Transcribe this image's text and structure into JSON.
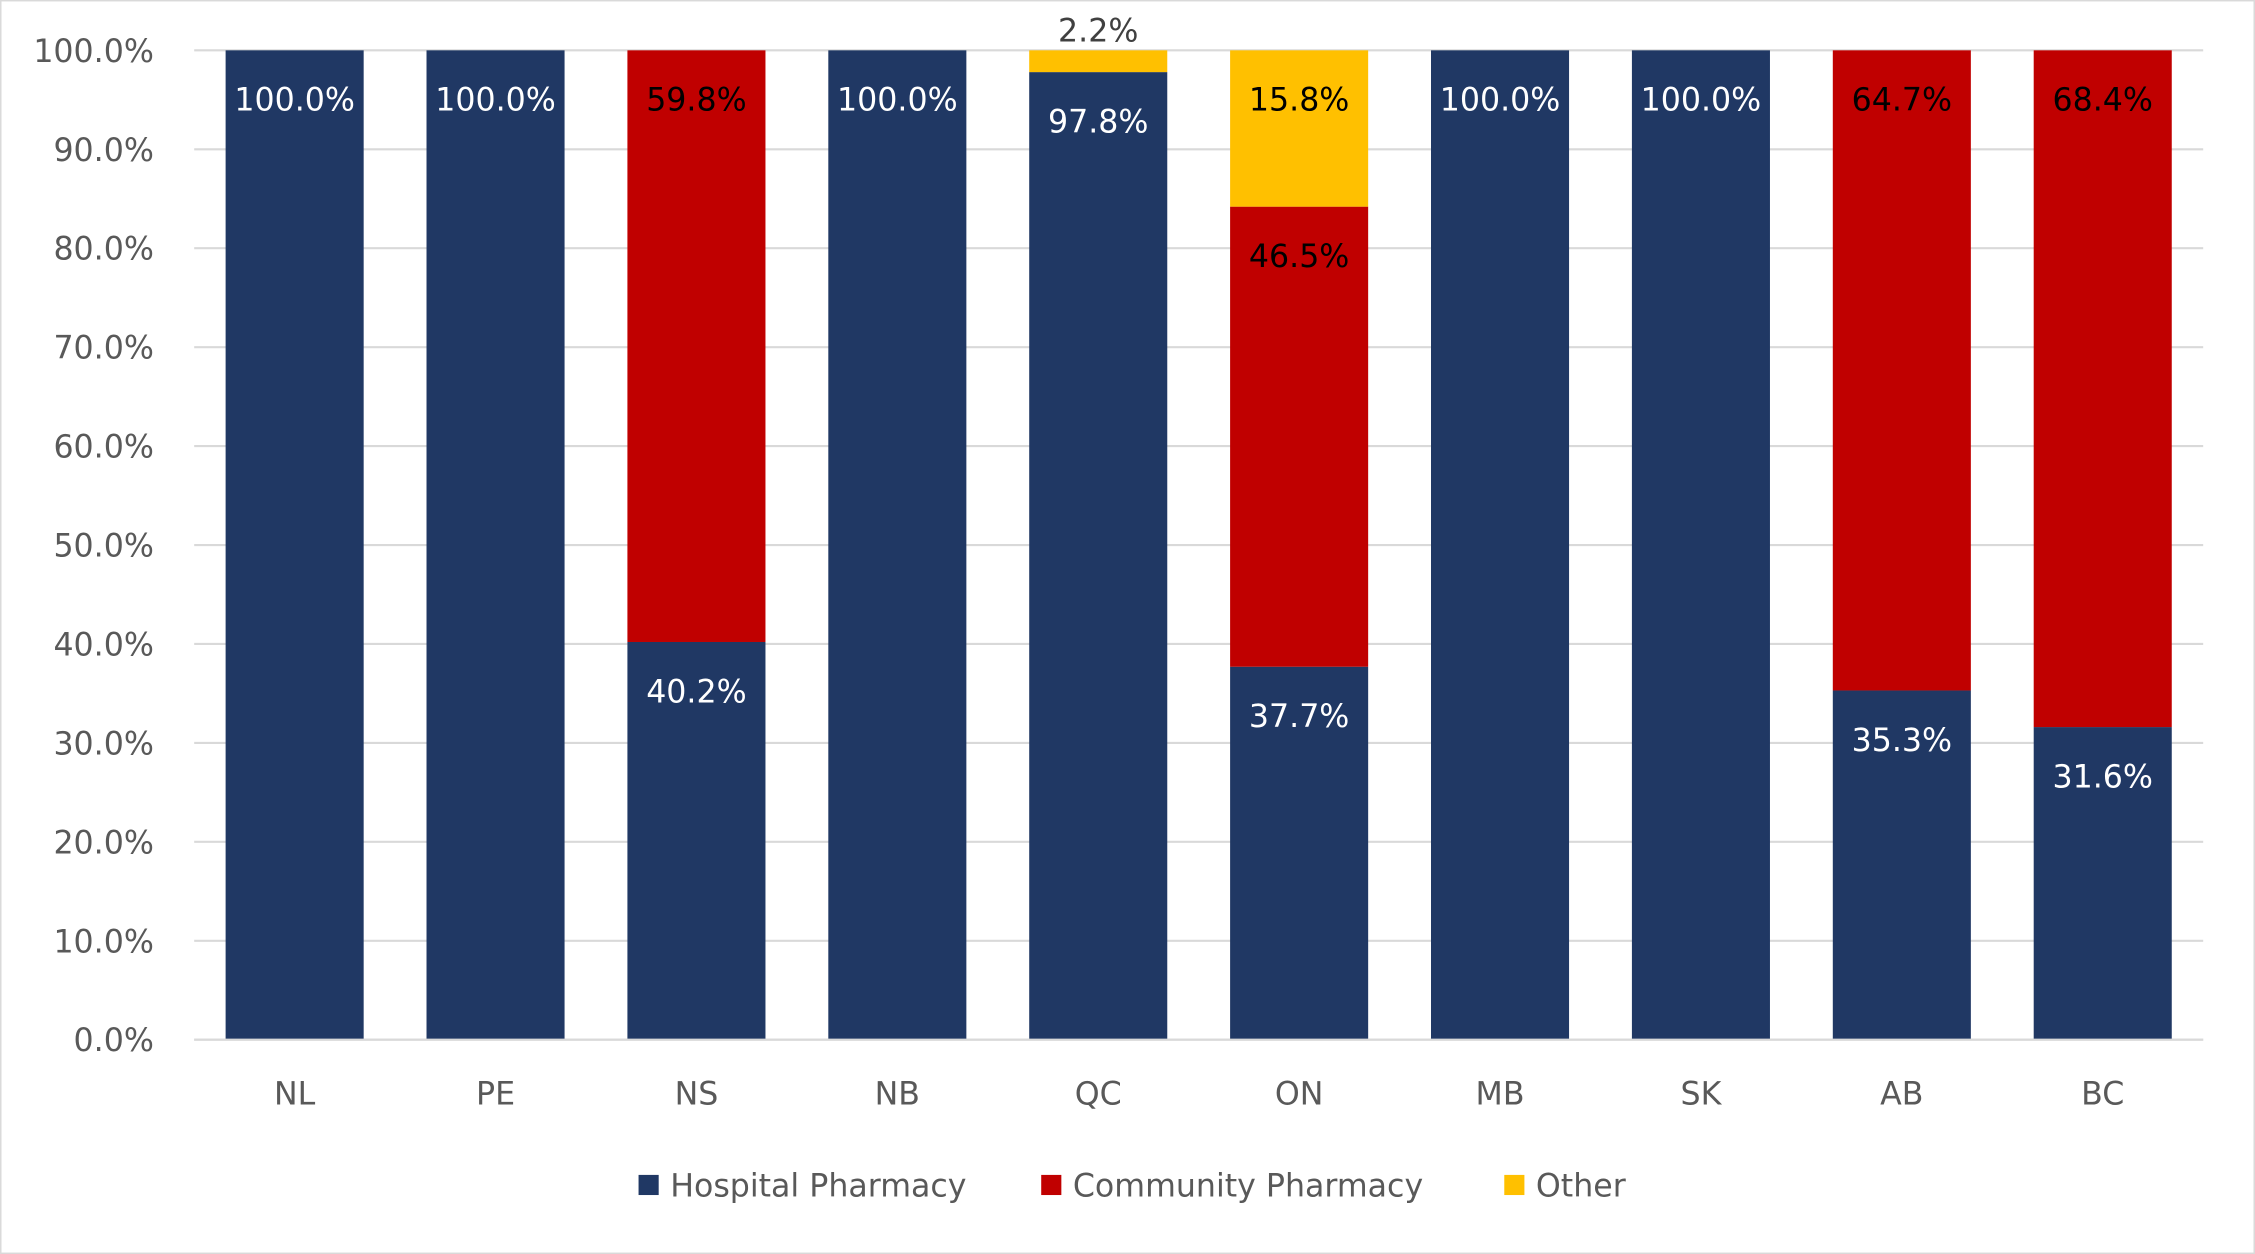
{
  "chart_data": {
    "type": "bar",
    "stacked": true,
    "title": "",
    "xlabel": "",
    "ylabel": "",
    "ylim": [
      0,
      100
    ],
    "yticks": [
      "0.0%",
      "10.0%",
      "20.0%",
      "30.0%",
      "40.0%",
      "50.0%",
      "60.0%",
      "70.0%",
      "80.0%",
      "90.0%",
      "100.0%"
    ],
    "grid": true,
    "legend_position": "bottom",
    "categories": [
      "NL",
      "PE",
      "NS",
      "NB",
      "QC",
      "ON",
      "MB",
      "SK",
      "AB",
      "BC"
    ],
    "series": [
      {
        "name": "Hospital Pharmacy",
        "color": "#203864",
        "label_color": "#ffffff",
        "values": [
          100.0,
          100.0,
          40.2,
          100.0,
          97.8,
          37.7,
          100.0,
          100.0,
          35.3,
          31.6
        ],
        "labels": [
          "100.0%",
          "100.0%",
          "40.2%",
          "100.0%",
          "97.8%",
          "37.7%",
          "100.0%",
          "100.0%",
          "35.3%",
          "31.6%"
        ]
      },
      {
        "name": "Community Pharmacy",
        "color": "#C00000",
        "label_color": "#000000",
        "values": [
          0,
          0,
          59.8,
          0,
          0,
          46.5,
          0,
          0,
          64.7,
          68.4
        ],
        "labels": [
          "",
          "",
          "59.8%",
          "",
          "",
          "46.5%",
          "",
          "",
          "64.7%",
          "68.4%"
        ]
      },
      {
        "name": "Other",
        "color": "#FFC000",
        "label_color": "#000000",
        "values": [
          0,
          0,
          0,
          0,
          2.2,
          15.8,
          0,
          0,
          0,
          0
        ],
        "labels": [
          "",
          "",
          "",
          "",
          "2.2%",
          "15.8%",
          "",
          "",
          "",
          ""
        ]
      }
    ]
  }
}
